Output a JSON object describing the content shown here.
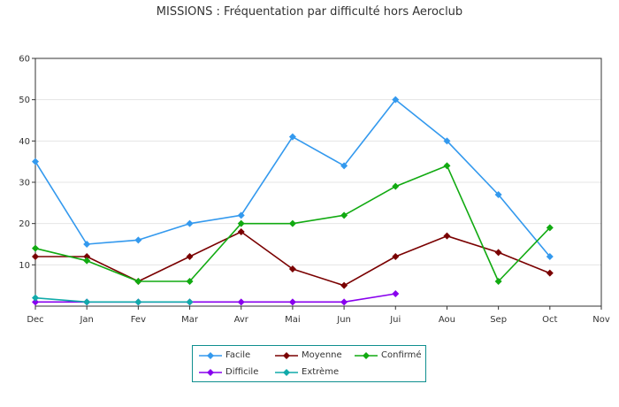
{
  "chart_data": {
    "type": "line",
    "title": "MISSIONS : Fréquentation par difficulté hors Aeroclub",
    "xlabel": "",
    "ylabel": "",
    "categories": [
      "Dec",
      "Jan",
      "Fev",
      "Mar",
      "Avr",
      "Mai",
      "Jun",
      "Jui",
      "Aou",
      "Sep",
      "Oct",
      "Nov"
    ],
    "ylim": [
      0,
      60
    ],
    "yticks": [
      10,
      20,
      30,
      40,
      50,
      60
    ],
    "grid": true,
    "legend_position": "bottom",
    "series": [
      {
        "name": "Facile",
        "color": "#3399ee",
        "values": [
          35,
          15,
          16,
          20,
          22,
          41,
          34,
          50,
          40,
          27,
          12,
          null
        ]
      },
      {
        "name": "Moyenne",
        "color": "#7a0000",
        "values": [
          12,
          12,
          6,
          12,
          18,
          9,
          5,
          12,
          17,
          13,
          8,
          null
        ]
      },
      {
        "name": "Confirmé",
        "color": "#11aa11",
        "values": [
          14,
          11,
          6,
          6,
          20,
          20,
          22,
          29,
          34,
          6,
          19,
          null
        ]
      },
      {
        "name": "Difficile",
        "color": "#8800ee",
        "values": [
          1,
          1,
          1,
          1,
          1,
          1,
          1,
          3,
          null,
          null,
          null,
          null
        ]
      },
      {
        "name": "Extrème",
        "color": "#11aaaa",
        "values": [
          2,
          1,
          1,
          1,
          null,
          null,
          null,
          null,
          null,
          null,
          null,
          null
        ]
      }
    ]
  }
}
